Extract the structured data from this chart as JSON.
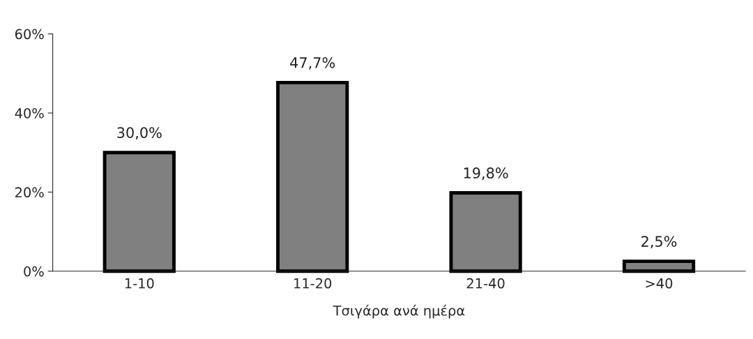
{
  "chart_data": {
    "type": "bar",
    "xlabel": "Τσιγάρα ανά ημέρα",
    "categories": [
      "1-10",
      "11-20",
      "21-40",
      ">40"
    ],
    "values": [
      30.0,
      47.7,
      19.8,
      2.5
    ],
    "value_labels": [
      "30,0%",
      "47,7%",
      "19,8%",
      "2,5%"
    ],
    "color": "#808080",
    "ylim": [
      0,
      60
    ],
    "yticks": [
      {
        "value": 0,
        "label": "0%"
      },
      {
        "value": 20,
        "label": "20%"
      },
      {
        "value": 40,
        "label": "40%"
      },
      {
        "value": 60,
        "label": "60%"
      }
    ],
    "grid": false,
    "legend": false
  }
}
